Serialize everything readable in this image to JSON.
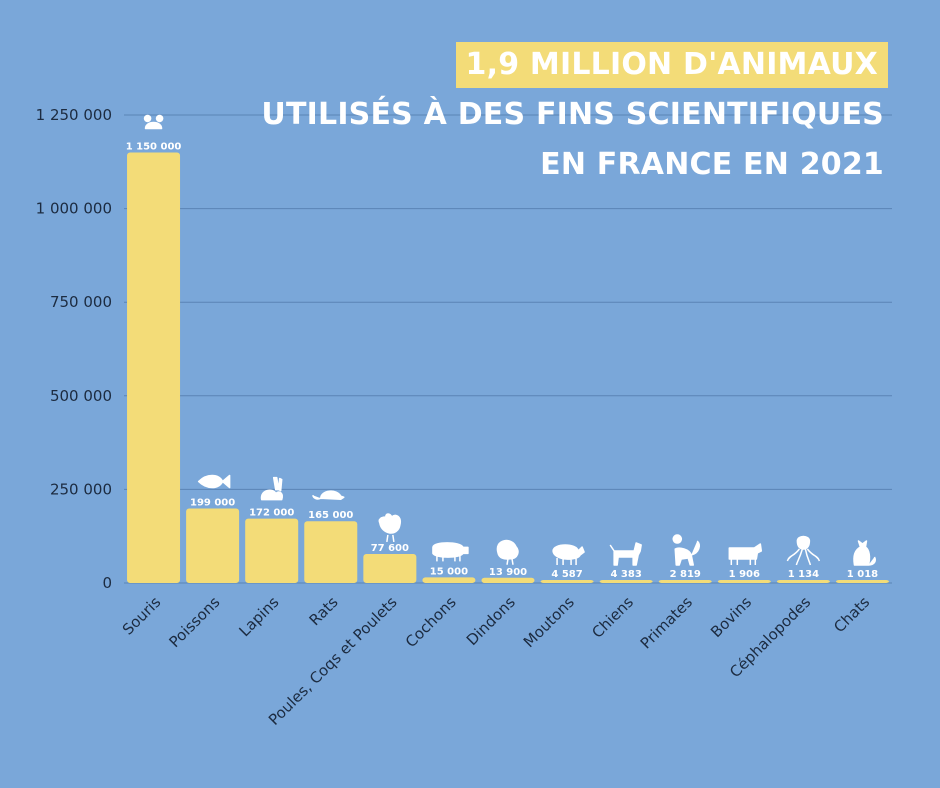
{
  "title": {
    "line1": "1,9 MILLION D'ANIMAUX",
    "line2": "UTILISÉS À DES FINS SCIENTIFIQUES",
    "line3": "EN FRANCE EN 2021"
  },
  "colors": {
    "background": "#7aa7d9",
    "bar": "#f3dc78",
    "gridline": "#5a84b5",
    "icon": "#ffffff"
  },
  "chart_data": {
    "type": "bar",
    "categories": [
      "Souris",
      "Poissons",
      "Lapins",
      "Rats",
      "Poules, Coqs et Poulets",
      "Cochons",
      "Dindons",
      "Moutons",
      "Chiens",
      "Primates",
      "Bovins",
      "Céphalopodes",
      "Chats"
    ],
    "values": [
      1150000,
      199000,
      172000,
      165000,
      77600,
      15000,
      13900,
      4587,
      4383,
      2819,
      1906,
      1134,
      1018
    ],
    "value_labels": [
      "1 150 000",
      "199 000",
      "172 000",
      "165 000",
      "77 600",
      "15 000",
      "13 900",
      "4 587",
      "4 383",
      "2 819",
      "1 906",
      "1 134",
      "1 018"
    ],
    "icons": [
      "mouse-icon",
      "fish-icon",
      "rabbit-icon",
      "rat-icon",
      "chicken-icon",
      "pig-icon",
      "turkey-icon",
      "sheep-icon",
      "dog-icon",
      "monkey-icon",
      "cow-icon",
      "octopus-icon",
      "cat-icon"
    ],
    "ylim": [
      0,
      1250000
    ],
    "yticks": [
      0,
      250000,
      500000,
      750000,
      1000000,
      1250000
    ],
    "ytick_labels": [
      "0",
      "250 000",
      "500 000",
      "750 000",
      "1 000 000",
      "1 250 000"
    ],
    "grid": true,
    "legend": "none"
  }
}
